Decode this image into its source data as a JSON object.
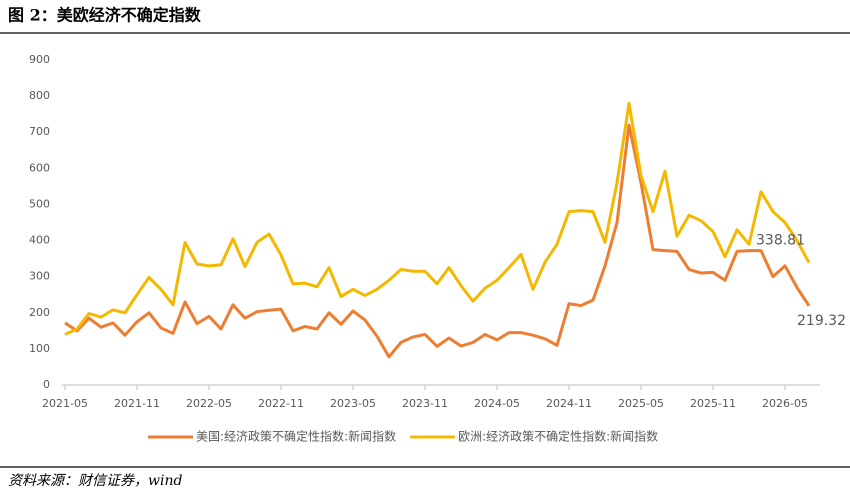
{
  "chart_data": {
    "type": "line",
    "title": "图 2：美欧经济不确定指数",
    "source": "资料来源：财信证券，wind",
    "categories": [
      "2021-05",
      null,
      null,
      null,
      null,
      null,
      "2021-11",
      null,
      null,
      null,
      null,
      null,
      "2022-05",
      null,
      null,
      null,
      null,
      null,
      "2022-11",
      null,
      null,
      null,
      null,
      null,
      "2023-05",
      null,
      null,
      null,
      null,
      null,
      "2023-11",
      null,
      null,
      null,
      null,
      null,
      "2024-05",
      null,
      null,
      null,
      null,
      null,
      "2024-11",
      null,
      null,
      null,
      null,
      null,
      "2025-05",
      null,
      null,
      null,
      null,
      null,
      "2025-11",
      null,
      null,
      null,
      null,
      null,
      "2026-05",
      null,
      null
    ],
    "series": [
      {
        "name": "美国:经济政策不确定性指数:新闻指数",
        "color": "#ed7d31",
        "values": [
          172,
          150,
          185,
          160,
          172,
          138,
          175,
          200,
          158,
          143,
          230,
          170,
          190,
          155,
          222,
          185,
          203,
          207,
          210,
          150,
          162,
          155,
          200,
          168,
          205,
          180,
          135,
          78,
          118,
          133,
          140,
          107,
          130,
          108,
          118,
          140,
          125,
          145,
          145,
          138,
          128,
          110,
          225,
          220,
          235,
          330,
          450,
          720,
          560,
          375,
          372,
          370,
          320,
          310,
          312,
          290,
          370,
          372,
          372,
          300,
          330,
          270,
          219.32
        ]
      },
      {
        "name": "欧洲:经济政策不确定性指数:新闻指数",
        "color": "#f5b800",
        "values": [
          140,
          155,
          198,
          188,
          208,
          200,
          250,
          298,
          265,
          222,
          395,
          335,
          330,
          333,
          405,
          328,
          395,
          418,
          360,
          280,
          282,
          272,
          325,
          245,
          265,
          248,
          265,
          290,
          320,
          315,
          315,
          280,
          325,
          275,
          232,
          268,
          290,
          325,
          362,
          265,
          340,
          390,
          480,
          483,
          480,
          395,
          560,
          780,
          580,
          480,
          592,
          412,
          470,
          455,
          425,
          355,
          430,
          390,
          535,
          480,
          450,
          400,
          338.81
        ]
      }
    ],
    "ylim": [
      0,
      900
    ],
    "yticks": [
      0,
      100,
      200,
      300,
      400,
      500,
      600,
      700,
      800,
      900
    ],
    "grid": false,
    "legend": "bottom"
  }
}
